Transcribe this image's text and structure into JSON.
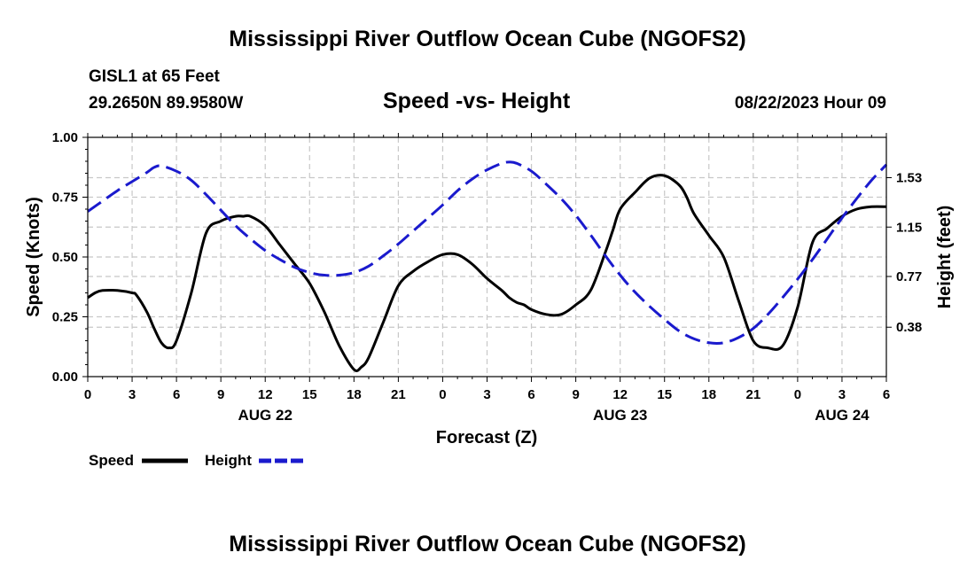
{
  "header": {
    "title": "Mississippi River Outflow Ocean Cube (NGOFS2)",
    "station": "GISL1 at 65 Feet",
    "coords": "29.2650N  89.9580W",
    "subtitle": "Speed -vs- Height",
    "datetime": "08/22/2023 Hour 09"
  },
  "footer": {
    "title": "Mississippi River Outflow Ocean Cube (NGOFS2)"
  },
  "colors": {
    "speed": "#000000",
    "height": "#1a1acd",
    "grid": "#c8c8c8"
  },
  "chart_data": {
    "type": "line",
    "title": "Speed -vs- Height",
    "xlabel": "Forecast (Z)",
    "ylabel": "Speed (Knots)",
    "ylabel_right": "Height (feet)",
    "xlim": [
      0,
      54
    ],
    "ylim": [
      0,
      1
    ],
    "ylim_right": [
      0,
      1.84
    ],
    "x_ticks": [
      0,
      3,
      6,
      9,
      12,
      15,
      18,
      21,
      24,
      27,
      30,
      33,
      36,
      39,
      42,
      45,
      48,
      51,
      54
    ],
    "x_tick_labels": [
      "0",
      "3",
      "6",
      "9",
      "12",
      "15",
      "18",
      "21",
      "0",
      "3",
      "6",
      "9",
      "12",
      "15",
      "18",
      "21",
      "0",
      "3",
      "6"
    ],
    "x_date_labels": [
      {
        "x": 12,
        "label": "AUG 22"
      },
      {
        "x": 36,
        "label": "AUG 23"
      },
      {
        "x": 51,
        "label": "AUG 24"
      }
    ],
    "y_ticks": [
      0,
      0.25,
      0.5,
      0.75,
      1.0
    ],
    "y_tick_labels": [
      "0.00",
      "0.25",
      "0.50",
      "0.75",
      "1.00"
    ],
    "y_right_ticks": [
      0.38,
      0.77,
      1.15,
      1.53
    ],
    "y_right_tick_labels": [
      "0.38",
      "0.77",
      "1.15",
      "1.53"
    ],
    "legend": [
      {
        "name": "Speed",
        "style": "solid"
      },
      {
        "name": "Height",
        "style": "dashed"
      }
    ],
    "series": [
      {
        "name": "Speed",
        "axis": "left",
        "x": [
          0,
          0.5,
          1,
          2,
          3,
          3.3,
          4,
          4.5,
          5,
          5.5,
          6,
          7,
          8,
          9,
          10,
          10.5,
          11,
          12,
          13,
          14,
          15,
          16,
          17,
          18,
          18.5,
          19,
          20,
          21,
          22,
          23,
          24,
          25,
          26,
          27,
          28,
          28.5,
          29,
          29.5,
          30,
          31,
          32,
          33,
          34,
          35,
          35.5,
          36,
          37,
          38,
          39,
          40,
          40.5,
          41,
          42,
          43,
          44,
          45,
          46,
          47,
          48,
          49,
          50,
          51,
          52,
          53,
          54
        ],
        "y": [
          0.33,
          0.35,
          0.36,
          0.36,
          0.35,
          0.34,
          0.27,
          0.2,
          0.14,
          0.12,
          0.15,
          0.35,
          0.6,
          0.65,
          0.67,
          0.67,
          0.67,
          0.63,
          0.55,
          0.47,
          0.39,
          0.27,
          0.13,
          0.03,
          0.04,
          0.08,
          0.23,
          0.38,
          0.44,
          0.48,
          0.51,
          0.51,
          0.47,
          0.41,
          0.36,
          0.33,
          0.31,
          0.3,
          0.28,
          0.26,
          0.26,
          0.3,
          0.36,
          0.52,
          0.61,
          0.7,
          0.77,
          0.83,
          0.84,
          0.8,
          0.75,
          0.68,
          0.59,
          0.5,
          0.32,
          0.15,
          0.12,
          0.13,
          0.29,
          0.56,
          0.62,
          0.67,
          0.7,
          0.71,
          0.71
        ]
      },
      {
        "name": "Height",
        "axis": "right",
        "x": [
          0,
          1,
          2,
          3,
          4,
          4.5,
          5,
          6,
          7,
          8,
          9,
          10,
          11,
          12,
          13,
          14,
          15,
          16,
          17,
          18,
          19,
          20,
          21,
          22,
          23,
          24,
          25,
          26,
          27,
          28,
          28.5,
          29,
          30,
          31,
          32,
          33,
          34,
          35,
          36,
          37,
          38,
          39,
          40,
          41,
          42,
          43,
          44,
          45,
          46,
          47,
          48,
          49,
          50,
          51,
          52,
          53,
          54
        ],
        "y": [
          1.27,
          1.35,
          1.43,
          1.5,
          1.57,
          1.61,
          1.62,
          1.58,
          1.51,
          1.4,
          1.28,
          1.16,
          1.06,
          0.97,
          0.9,
          0.84,
          0.8,
          0.78,
          0.78,
          0.8,
          0.85,
          0.93,
          1.02,
          1.12,
          1.22,
          1.32,
          1.43,
          1.52,
          1.59,
          1.64,
          1.65,
          1.64,
          1.58,
          1.48,
          1.37,
          1.24,
          1.09,
          0.93,
          0.78,
          0.65,
          0.54,
          0.44,
          0.35,
          0.29,
          0.26,
          0.26,
          0.3,
          0.37,
          0.48,
          0.61,
          0.75,
          0.9,
          1.06,
          1.22,
          1.37,
          1.51,
          1.63
        ]
      }
    ]
  }
}
